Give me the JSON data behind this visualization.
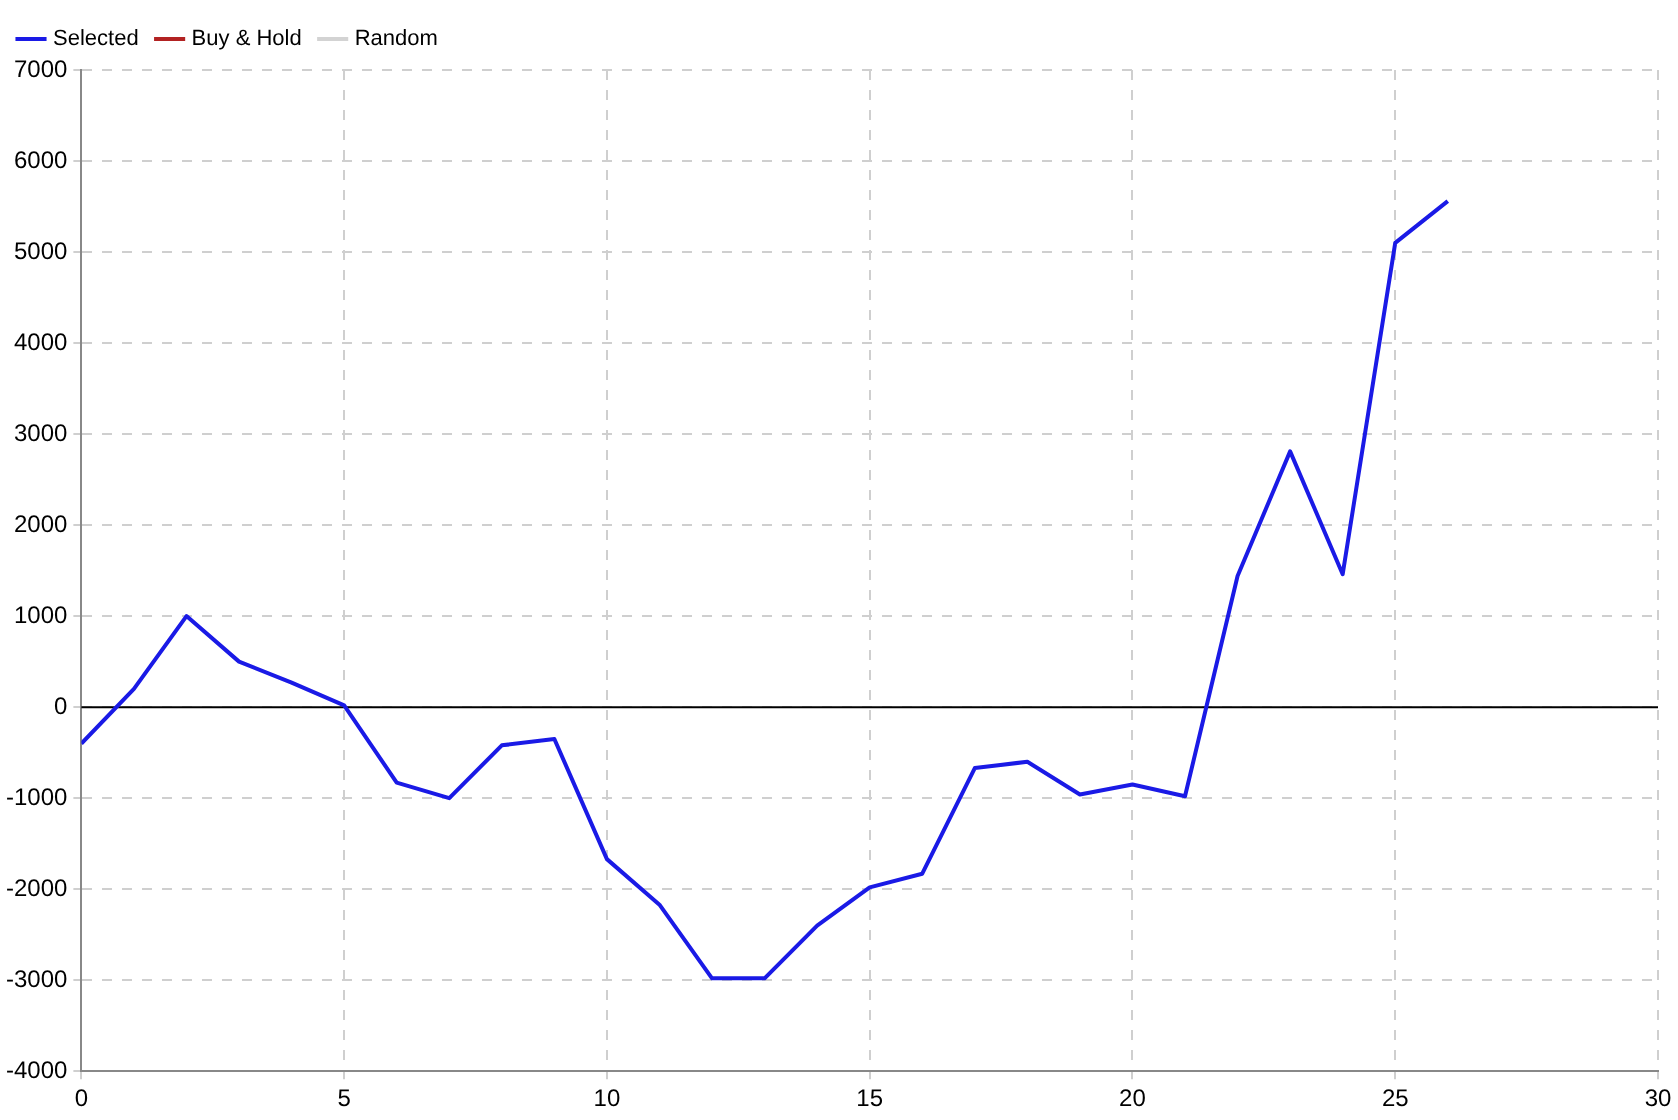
{
  "chart_data": {
    "type": "line",
    "x": [
      0,
      1,
      2,
      3,
      4,
      5,
      6,
      7,
      8,
      9,
      10,
      11,
      12,
      13,
      14,
      15,
      16,
      17,
      18,
      19,
      20,
      21,
      22,
      23,
      24,
      25,
      26
    ],
    "series": [
      {
        "name": "Selected",
        "color": "#1a1ae6",
        "values": [
          -400,
          200,
          1000,
          500,
          270,
          20,
          -830,
          -1000,
          -420,
          -350,
          -1670,
          -2170,
          -2980,
          -2980,
          -2400,
          -1980,
          -1830,
          -670,
          -600,
          -960,
          -850,
          -980,
          1440,
          2810,
          1460,
          5100,
          5560
        ]
      },
      {
        "name": "Buy & Hold",
        "color": "#b22222",
        "values": [
          null,
          null,
          null,
          null,
          null,
          null,
          null,
          null,
          null,
          null,
          null,
          null,
          null,
          null,
          null,
          null,
          null,
          null,
          null,
          null,
          null,
          null,
          null,
          null,
          null,
          null,
          null
        ]
      },
      {
        "name": "Random",
        "color": "#d3d3d3",
        "values": [
          null,
          null,
          null,
          null,
          null,
          null,
          null,
          null,
          null,
          null,
          null,
          null,
          null,
          null,
          null,
          null,
          null,
          null,
          null,
          null,
          null,
          null,
          null,
          null,
          null,
          null,
          null
        ]
      }
    ],
    "xlim": [
      0,
      30
    ],
    "xticks": [
      0,
      5,
      10,
      15,
      20,
      25,
      30
    ],
    "ylim": [
      -4000,
      7000
    ],
    "yticks": [
      -4000,
      -3000,
      -2000,
      -1000,
      0,
      1000,
      2000,
      3000,
      4000,
      5000,
      6000,
      7000
    ],
    "ref_lines": [
      {
        "axis": "y",
        "value": 0,
        "color": "#000000"
      }
    ],
    "grid": true,
    "legend": "top left",
    "marker": "none",
    "line_style": "solid"
  }
}
